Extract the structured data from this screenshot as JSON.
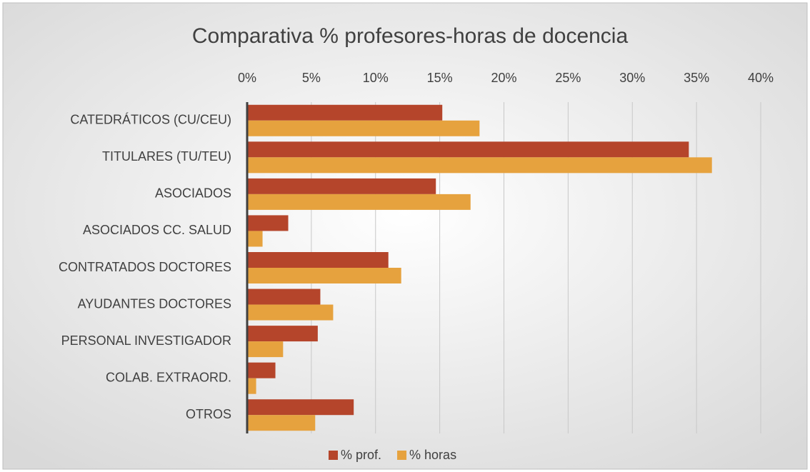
{
  "chart_data": {
    "type": "hbar",
    "title": "Comparativa % profesores-horas de docencia",
    "categories": [
      "CATEDRÁTICOS (CU/CEU)",
      "TITULARES (TU/TEU)",
      "ASOCIADOS",
      "ASOCIADOS CC. SALUD",
      "CONTRATADOS DOCTORES",
      "AYUDANTES DOCTORES",
      "PERSONAL INVESTIGADOR",
      "COLAB. EXTRAORD.",
      "OTROS"
    ],
    "series": [
      {
        "name": "% prof.",
        "color": "#b5452b",
        "values": [
          15.2,
          34.4,
          14.7,
          3.2,
          11.0,
          5.7,
          5.5,
          2.2,
          8.3
        ]
      },
      {
        "name": "% horas",
        "color": "#e6a23e",
        "values": [
          18.1,
          36.2,
          17.4,
          1.2,
          12.0,
          6.7,
          2.8,
          0.7,
          5.3
        ]
      }
    ],
    "xlim": [
      0,
      40
    ],
    "xticks": [
      {
        "value": 0,
        "label": "0%"
      },
      {
        "value": 5,
        "label": "5%"
      },
      {
        "value": 10,
        "label": "10%"
      },
      {
        "value": 15,
        "label": "15%"
      },
      {
        "value": 20,
        "label": "20%"
      },
      {
        "value": 25,
        "label": "25%"
      },
      {
        "value": 30,
        "label": "30%"
      },
      {
        "value": 35,
        "label": "35%"
      },
      {
        "value": 40,
        "label": "40%"
      }
    ],
    "grid": true,
    "legend": "bottom"
  }
}
